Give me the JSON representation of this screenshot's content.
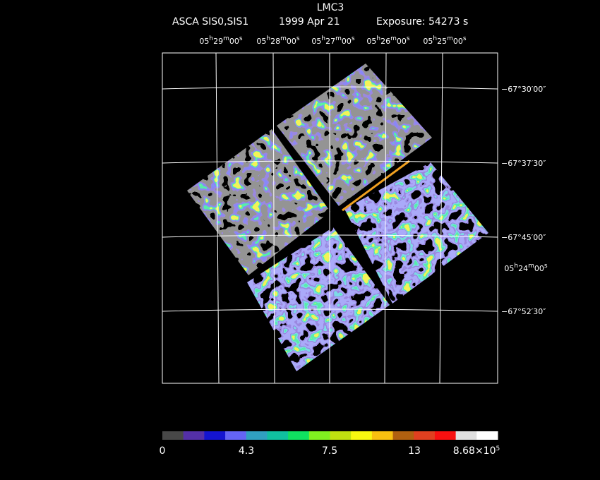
{
  "header": {
    "title": "LMC3",
    "subtitle": [
      "ASCA SIS0,SIS1",
      "1999 Apr 21",
      "Exposure: 54273 s"
    ]
  },
  "ra_labels": [
    [
      "05",
      "h",
      "29",
      "m",
      "00",
      "s"
    ],
    [
      "05",
      "h",
      "28",
      "m",
      "00",
      "s"
    ],
    [
      "05",
      "h",
      "27",
      "m",
      "00",
      "s"
    ],
    [
      "05",
      "h",
      "26",
      "m",
      "00",
      "s"
    ],
    [
      "05",
      "h",
      "25",
      "m",
      "00",
      "s"
    ],
    [
      "05",
      "h",
      "24",
      "m",
      "00",
      "s"
    ]
  ],
  "dec_labels": [
    "−67°30′00″",
    "−67°37′30″",
    "−67°45′00″",
    "−67°52′30″"
  ],
  "colorbar_labels": [
    [
      "0"
    ],
    [
      "4.3"
    ],
    [
      "7.5"
    ],
    [
      "13"
    ],
    [
      "8.68×10",
      "5"
    ]
  ]
}
